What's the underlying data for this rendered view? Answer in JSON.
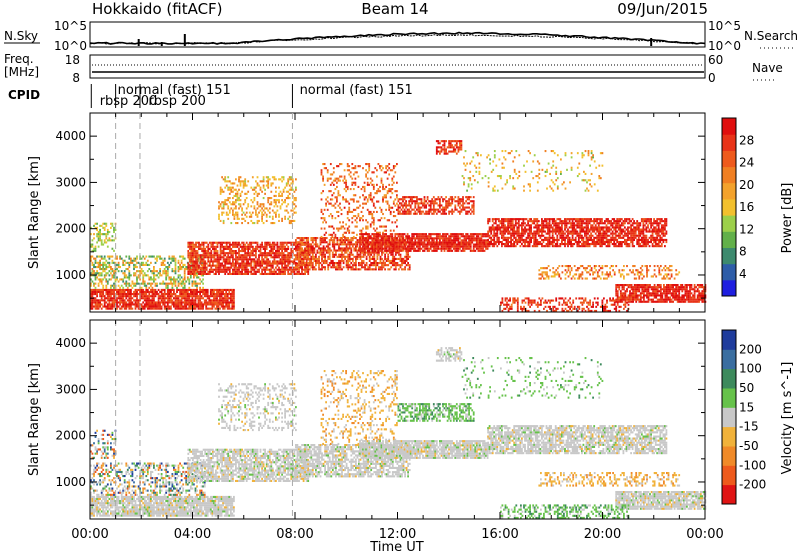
{
  "header": {
    "radar": "Hokkaido (fitACF)",
    "beam": "Beam 14",
    "date": "09/Jun/2015"
  },
  "left_labels": {
    "nsky": "N.Sky",
    "freq_line1": "Freq.",
    "freq_line2": "[MHz]",
    "cpid": "CPID"
  },
  "right_labels": {
    "nsearch": "N.Search",
    "nave": "Nave"
  },
  "noise_panel": {
    "left_ticks": [
      "10^5",
      "10^0"
    ],
    "right_ticks": [
      "10^5",
      "10^0"
    ]
  },
  "freq_panel": {
    "left_ticks": [
      "18",
      "8"
    ],
    "right_ticks": [
      "60",
      "0"
    ]
  },
  "cpid_labels": [
    {
      "text": "rbsp 200",
      "time": 0.3,
      "row": 2
    },
    {
      "text": "normal (fast) 151",
      "time": 1.0,
      "row": 1
    },
    {
      "text": "rbsp 200",
      "time": 2.2,
      "row": 2
    },
    {
      "text": "normal (fast) 151",
      "time": 8.1,
      "row": 1
    }
  ],
  "mode_change_times": [
    1.0,
    1.95,
    7.9
  ],
  "chart_data": [
    {
      "type": "heatmap",
      "quantity": "Power",
      "ylabel": "Slant Range [km]",
      "y_ticks": [
        "1000",
        "2000",
        "3000",
        "4000"
      ],
      "ylim": [
        200,
        4500
      ],
      "xlim": [
        0,
        24
      ],
      "x_ticks": [
        "00:00",
        "04:00",
        "08:00",
        "12:00",
        "16:00",
        "20:00",
        "00:00"
      ],
      "colorbar": {
        "label": "Power [dB]",
        "ticks": [
          "4",
          "8",
          "12",
          "16",
          "20",
          "24",
          "28"
        ],
        "colors": [
          "#1f1fe0",
          "#2e5da8",
          "#3d8a6e",
          "#62b04a",
          "#9ccf4a",
          "#f2c02e",
          "#f3a22c",
          "#f07f22",
          "#ee5a1c",
          "#e83318",
          "#e00e0e"
        ]
      }
    },
    {
      "type": "heatmap",
      "quantity": "Velocity",
      "ylabel": "Slant Range [km]",
      "y_ticks": [
        "1000",
        "2000",
        "3000",
        "4000"
      ],
      "ylim": [
        200,
        4500
      ],
      "xlim": [
        0,
        24
      ],
      "x_ticks": [
        "00:00",
        "04:00",
        "08:00",
        "12:00",
        "16:00",
        "20:00",
        "00:00"
      ],
      "xlabel": "Time UT",
      "colorbar": {
        "label": "Velocity [m s^-1]",
        "ticks": [
          "200",
          "100",
          "50",
          "15",
          "-15",
          "-50",
          "-100",
          "-200"
        ],
        "colors": [
          "#1f3c9c",
          "#3a6ea0",
          "#3d8a5c",
          "#66c24a",
          "#c8c8c8",
          "#f1b23a",
          "#f08a28",
          "#ee5a1c",
          "#e01414"
        ]
      }
    }
  ],
  "scatter_regions": [
    {
      "t0": 0.0,
      "t1": 5.6,
      "r0": 250,
      "r1": 700,
      "density": 0.85,
      "pmin": 23,
      "pmax": 30,
      "vmode": "grey"
    },
    {
      "t0": 0.0,
      "t1": 4.5,
      "r0": 700,
      "r1": 1400,
      "density": 0.45,
      "pmin": 8,
      "pmax": 22,
      "vmode": "mixed"
    },
    {
      "t0": 0.0,
      "t1": 1.0,
      "r0": 1500,
      "r1": 2100,
      "density": 0.3,
      "pmin": 10,
      "pmax": 18,
      "vmode": "mixed"
    },
    {
      "t0": 3.8,
      "t1": 8.5,
      "r0": 1000,
      "r1": 1700,
      "density": 0.75,
      "pmin": 22,
      "pmax": 30,
      "vmode": "grey"
    },
    {
      "t0": 5.0,
      "t1": 8.0,
      "r0": 2100,
      "r1": 3100,
      "density": 0.3,
      "pmin": 14,
      "pmax": 22,
      "vmode": "grey"
    },
    {
      "t0": 8.0,
      "t1": 12.5,
      "r0": 1100,
      "r1": 1800,
      "density": 0.65,
      "pmin": 20,
      "pmax": 30,
      "vmode": "grey"
    },
    {
      "t0": 9.0,
      "t1": 12.0,
      "r0": 1800,
      "r1": 3400,
      "density": 0.22,
      "pmin": 18,
      "pmax": 28,
      "vmode": "orange"
    },
    {
      "t0": 10.5,
      "t1": 15.5,
      "r0": 1500,
      "r1": 1900,
      "density": 0.85,
      "pmin": 24,
      "pmax": 30,
      "vmode": "grey"
    },
    {
      "t0": 12.0,
      "t1": 15.0,
      "r0": 2300,
      "r1": 2700,
      "density": 0.6,
      "pmin": 22,
      "pmax": 29,
      "vmode": "green"
    },
    {
      "t0": 13.5,
      "t1": 14.5,
      "r0": 3600,
      "r1": 3900,
      "density": 0.6,
      "pmin": 22,
      "pmax": 30,
      "vmode": "grey"
    },
    {
      "t0": 15.5,
      "t1": 22.5,
      "r0": 1600,
      "r1": 2200,
      "density": 0.75,
      "pmin": 24,
      "pmax": 30,
      "vmode": "grey"
    },
    {
      "t0": 20.5,
      "t1": 24.0,
      "r0": 400,
      "r1": 800,
      "density": 0.8,
      "pmin": 24,
      "pmax": 30,
      "vmode": "grey"
    },
    {
      "t0": 16.0,
      "t1": 21.0,
      "r0": 200,
      "r1": 500,
      "density": 0.4,
      "pmin": 22,
      "pmax": 30,
      "vmode": "green"
    },
    {
      "t0": 17.5,
      "t1": 23.0,
      "r0": 900,
      "r1": 1200,
      "density": 0.35,
      "pmin": 16,
      "pmax": 26,
      "vmode": "orange"
    },
    {
      "t0": 14.5,
      "t1": 20.0,
      "r0": 2800,
      "r1": 3700,
      "density": 0.12,
      "pmin": 12,
      "pmax": 22,
      "vmode": "green"
    }
  ]
}
